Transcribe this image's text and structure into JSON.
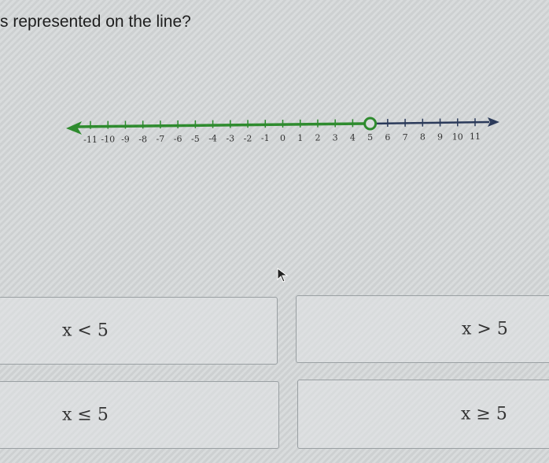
{
  "question": "s represented on the line?",
  "number_line": {
    "min": -11,
    "max": 11,
    "ticks": [
      -11,
      -10,
      -9,
      -8,
      -7,
      -6,
      -5,
      -4,
      -3,
      -2,
      -1,
      0,
      1,
      2,
      3,
      4,
      5,
      6,
      7,
      8,
      9,
      10,
      11
    ],
    "point": 5,
    "point_type": "open",
    "shaded_direction": "left",
    "shade_color": "#2e8b2e",
    "line_color": "#2b3a5a"
  },
  "choices": [
    {
      "label": "x < 5"
    },
    {
      "label": "x > 5"
    },
    {
      "label": "x ≤ 5"
    },
    {
      "label": "x ≥ 5"
    }
  ]
}
